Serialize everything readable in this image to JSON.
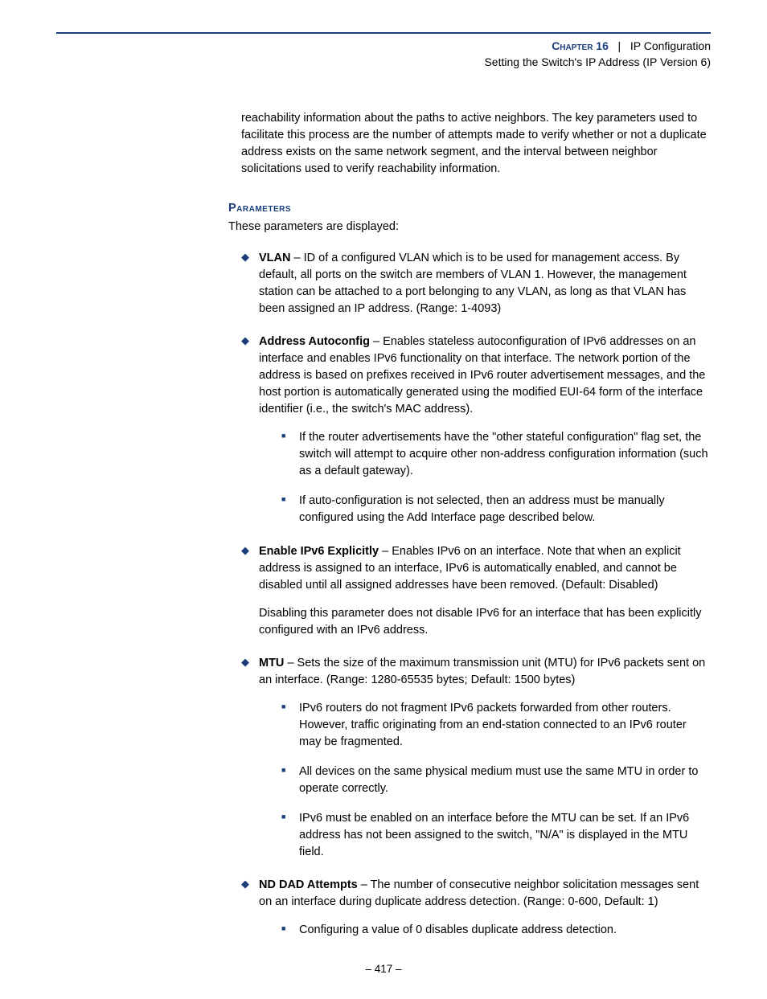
{
  "header": {
    "chapter_label": "Chapter 16",
    "chapter_title": "IP Configuration",
    "subtitle": "Setting the Switch's IP Address (IP Version 6)"
  },
  "intro_paragraph": "reachability information about the paths to active neighbors. The key parameters used to facilitate this process are the number of attempts made to verify whether or not a duplicate address exists on the same network segment, and the interval between neighbor solicitations used to verify reachability information.",
  "parameters_section": {
    "heading": "Parameters",
    "intro": "These parameters are displayed:",
    "items": [
      {
        "term": "VLAN",
        "desc": " – ID of a configured VLAN which is to be used for management access. By default, all ports on the switch are members of VLAN 1. However, the management station can be attached to a port belonging to any VLAN, as long as that VLAN has been assigned an IP address. (Range: 1-4093)"
      },
      {
        "term": "Address Autoconfig",
        "desc": " – Enables stateless autoconfiguration of IPv6 addresses on an interface and enables IPv6 functionality on that interface. The network portion of the address is based on prefixes received in IPv6 router advertisement messages, and the host portion is automatically generated using the modified EUI-64 form of the interface identifier (i.e., the switch's MAC address).",
        "subs": [
          "If the router advertisements have the \"other stateful configuration\" flag set, the switch will attempt to acquire other non-address configuration information (such as a default gateway).",
          "If auto-configuration is not selected, then an address must be manually configured using the Add Interface page described below."
        ]
      },
      {
        "term": "Enable IPv6 Explicitly",
        "desc": " – Enables IPv6 on an interface. Note that when an explicit address is assigned to an interface, IPv6 is automatically enabled, and cannot be disabled until all assigned addresses have been removed. (Default: Disabled)",
        "extra": "Disabling this parameter does not disable IPv6 for an interface that has been explicitly configured with an IPv6 address."
      },
      {
        "term": "MTU",
        "desc": " – Sets the size of the maximum transmission unit (MTU) for IPv6 packets sent on an interface. (Range: 1280-65535 bytes; Default: 1500 bytes)",
        "subs": [
          "IPv6 routers do not fragment IPv6 packets forwarded from other routers. However, traffic originating from an end-station connected to an IPv6 router may be fragmented.",
          "All devices on the same physical medium must use the same MTU in order to operate correctly.",
          "IPv6 must be enabled on an interface before the MTU can be set. If an IPv6 address has not been assigned to the switch, \"N/A\" is displayed in the MTU field."
        ]
      },
      {
        "term": "ND DAD Attempts",
        "desc": " – The number of consecutive neighbor solicitation messages sent on an interface during duplicate address detection. (Range: 0-600, Default: 1)",
        "subs": [
          "Configuring a value of 0 disables duplicate address detection."
        ]
      }
    ]
  },
  "footer": {
    "page_number": "–  417  –"
  }
}
